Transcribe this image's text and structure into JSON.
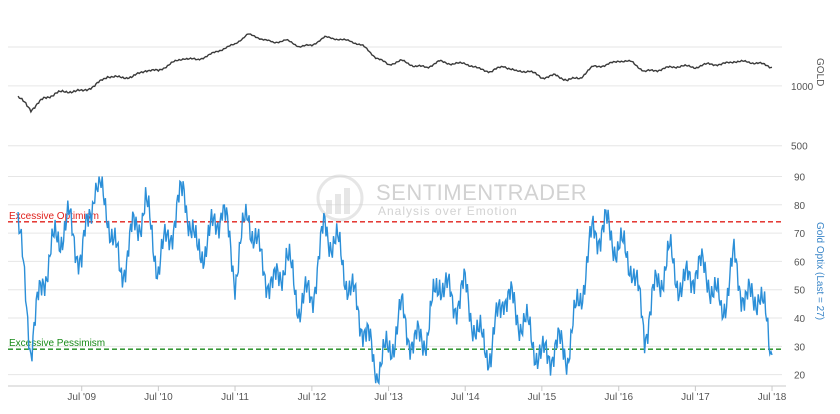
{
  "watermark": {
    "brand": "SENTIMENTRADER",
    "tagline": "Analysis over Emotion"
  },
  "colors": {
    "price_line": "#3a3a3a",
    "optix_line": "#2b8fd8",
    "optimism": "#e0201b",
    "pessimism": "#1a8a1a",
    "axis_text": "#555555",
    "optix_axis_text": "#3a86c8",
    "grid": "#e6e6e6",
    "watermark": "#d2d2d2"
  },
  "chart_data": [
    {
      "type": "line",
      "panel": "top",
      "ylabel": "GOLD",
      "y_ticks": [
        "1000",
        "500"
      ],
      "y_scale": "log",
      "series": [
        {
          "name": "GOLD",
          "x": [
            "2008-09",
            "2008-11",
            "2009-01",
            "2009-03",
            "2009-05",
            "2009-07",
            "2009-09",
            "2009-11",
            "2010-01",
            "2010-03",
            "2010-05",
            "2010-07",
            "2010-09",
            "2010-11",
            "2011-01",
            "2011-03",
            "2011-05",
            "2011-07",
            "2011-09",
            "2011-11",
            "2012-01",
            "2012-03",
            "2012-05",
            "2012-07",
            "2012-09",
            "2012-11",
            "2013-01",
            "2013-03",
            "2013-05",
            "2013-07",
            "2013-09",
            "2013-11",
            "2014-01",
            "2014-03",
            "2014-05",
            "2014-07",
            "2014-09",
            "2014-11",
            "2015-01",
            "2015-03",
            "2015-05",
            "2015-07",
            "2015-09",
            "2015-11",
            "2016-01",
            "2016-03",
            "2016-05",
            "2016-07",
            "2016-09",
            "2016-11",
            "2017-01",
            "2017-03",
            "2017-05",
            "2017-07",
            "2017-09",
            "2017-11",
            "2018-01",
            "2018-03",
            "2018-05",
            "2018-07"
          ],
          "values": [
            880,
            760,
            860,
            920,
            940,
            940,
            1000,
            1120,
            1100,
            1110,
            1200,
            1190,
            1300,
            1380,
            1350,
            1430,
            1530,
            1620,
            1820,
            1730,
            1650,
            1700,
            1580,
            1600,
            1760,
            1720,
            1680,
            1590,
            1390,
            1280,
            1340,
            1260,
            1240,
            1330,
            1290,
            1300,
            1220,
            1180,
            1260,
            1180,
            1190,
            1100,
            1130,
            1070,
            1100,
            1250,
            1270,
            1340,
            1320,
            1180,
            1200,
            1240,
            1260,
            1240,
            1290,
            1280,
            1330,
            1320,
            1300,
            1240
          ]
        }
      ]
    },
    {
      "type": "line",
      "panel": "bottom",
      "ylabel": "Gold Optix (Last = 27)",
      "y_ticks": [
        20,
        30,
        40,
        50,
        60,
        70,
        80,
        90
      ],
      "ylim": [
        16,
        93
      ],
      "x_ticks": [
        "Jul '09",
        "Jul '10",
        "Jul '11",
        "Jul '12",
        "Jul '13",
        "Jul '14",
        "Jul '15",
        "Jul '16",
        "Jul '17",
        "Jul '18"
      ],
      "annotations": [
        {
          "label": "Excessive Optimism",
          "y": 74
        },
        {
          "label": "Excessive Pessimism",
          "y": 29
        }
      ],
      "series": [
        {
          "name": "Gold Optix",
          "x": [
            "2008-09",
            "2008-11",
            "2009-01",
            "2009-03",
            "2009-05",
            "2009-07",
            "2009-09",
            "2009-11",
            "2010-01",
            "2010-03",
            "2010-05",
            "2010-07",
            "2010-09",
            "2010-11",
            "2011-01",
            "2011-03",
            "2011-05",
            "2011-07",
            "2011-09",
            "2011-11",
            "2012-01",
            "2012-03",
            "2012-05",
            "2012-07",
            "2012-09",
            "2012-11",
            "2013-01",
            "2013-03",
            "2013-05",
            "2013-07",
            "2013-09",
            "2013-11",
            "2014-01",
            "2014-03",
            "2014-05",
            "2014-07",
            "2014-09",
            "2014-11",
            "2015-01",
            "2015-03",
            "2015-05",
            "2015-07",
            "2015-09",
            "2015-11",
            "2016-01",
            "2016-03",
            "2016-05",
            "2016-07",
            "2016-09",
            "2016-11",
            "2017-01",
            "2017-03",
            "2017-05",
            "2017-07",
            "2017-09",
            "2017-11",
            "2018-01",
            "2018-03",
            "2018-05",
            "2018-07"
          ],
          "values": [
            74,
            30,
            55,
            68,
            74,
            60,
            88,
            78,
            55,
            70,
            80,
            58,
            72,
            85,
            62,
            68,
            80,
            55,
            78,
            60,
            50,
            62,
            45,
            48,
            72,
            65,
            50,
            38,
            22,
            28,
            42,
            30,
            35,
            55,
            45,
            50,
            33,
            28,
            50,
            42,
            35,
            25,
            30,
            28,
            48,
            70,
            72,
            65,
            60,
            35,
            52,
            62,
            50,
            58,
            55,
            42,
            60,
            45,
            50,
            27
          ]
        }
      ]
    }
  ]
}
